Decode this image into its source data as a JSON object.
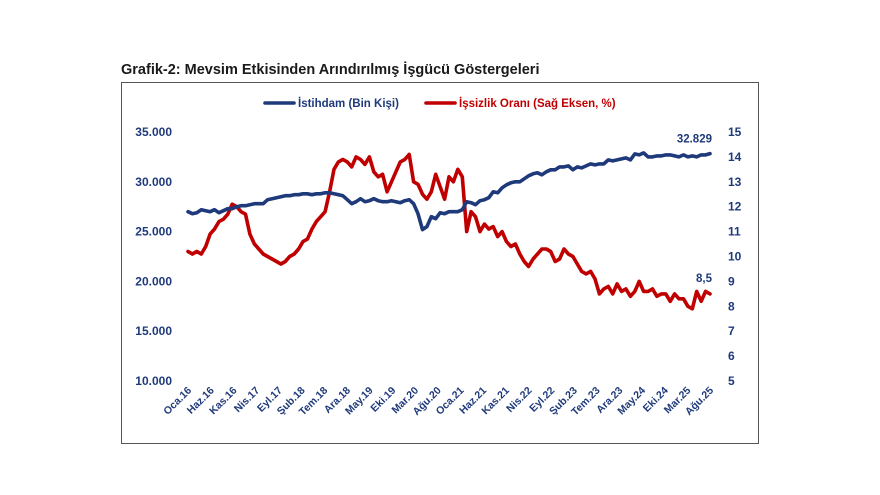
{
  "title": "Grafik-2: Mevsim Etkisinden Arındırılmış İşgücü Göstergeleri",
  "colors": {
    "employment": "#1f3a7a",
    "unemployment": "#c00000",
    "left_axis": "#1f3a7a",
    "right_axis": "#1f3a7a"
  },
  "chart_data": {
    "type": "line",
    "title": "Grafik-2: Mevsim Etkisinden Arındırılmış İşgücü Göstergeleri",
    "x_ticks": [
      "Oca.16",
      "Haz.16",
      "Kas.16",
      "Nis.17",
      "Eyl.17",
      "Şub.18",
      "Tem.18",
      "Ara.18",
      "May.19",
      "Eki.19",
      "Mar.20",
      "Ağu.20",
      "Oca.21",
      "Haz.21",
      "Kas.21",
      "Nis.22",
      "Eyl.22",
      "Şub.23",
      "Tem.23",
      "Ara.23",
      "May.24",
      "Eki.24",
      "Mar.25",
      "Ağu.25"
    ],
    "x_start": "Oca.16",
    "x_end": "Ağu.25",
    "y_left": {
      "ticks": [
        "10.000",
        "15.000",
        "20.000",
        "25.000",
        "30.000",
        "35.000"
      ],
      "ylim": [
        10000,
        35000
      ]
    },
    "y_right": {
      "ticks": [
        "5",
        "6",
        "7",
        "8",
        "9",
        "10",
        "11",
        "12",
        "13",
        "14",
        "15"
      ],
      "ylim": [
        5,
        15
      ]
    },
    "legend_position": "top",
    "series": [
      {
        "name": "İstihdam (Bin Kişi)",
        "axis": "left",
        "values": [
          27000,
          26800,
          26900,
          27200,
          27100,
          27000,
          27200,
          26900,
          27100,
          27300,
          27300,
          27500,
          27600,
          27600,
          27700,
          27800,
          27800,
          27800,
          28200,
          28300,
          28400,
          28500,
          28600,
          28600,
          28700,
          28700,
          28800,
          28800,
          28700,
          28800,
          28800,
          28900,
          28900,
          28800,
          28700,
          28600,
          28200,
          27800,
          28000,
          28300,
          28000,
          28100,
          28300,
          28100,
          28000,
          28000,
          28100,
          28000,
          27900,
          28100,
          28200,
          27800,
          26800,
          25200,
          25500,
          26500,
          26300,
          26900,
          26800,
          27000,
          27000,
          27000,
          27200,
          28000,
          27900,
          27700,
          28100,
          28200,
          28400,
          29000,
          28900,
          29400,
          29700,
          29900,
          30000,
          30000,
          30300,
          30600,
          30800,
          30900,
          30700,
          31000,
          31200,
          31200,
          31500,
          31500,
          31600,
          31200,
          31500,
          31400,
          31600,
          31800,
          31700,
          31800,
          31800,
          32200,
          32100,
          32200,
          32300,
          32400,
          32200,
          32800,
          32700,
          32900,
          32500,
          32500,
          32600,
          32600,
          32700,
          32700,
          32600,
          32500,
          32700,
          32500,
          32600,
          32500,
          32700,
          32700,
          32829
        ]
      },
      {
        "name": "İşsizlik Oranı (Sağ Eksen, %)",
        "axis": "right",
        "values": [
          10.2,
          10.1,
          10.2,
          10.1,
          10.4,
          10.9,
          11.1,
          11.4,
          11.5,
          11.7,
          12.1,
          12.0,
          11.8,
          11.7,
          10.9,
          10.5,
          10.3,
          10.1,
          10.0,
          9.9,
          9.8,
          9.7,
          9.8,
          10.0,
          10.1,
          10.3,
          10.6,
          10.7,
          11.1,
          11.4,
          11.6,
          11.8,
          12.6,
          13.5,
          13.8,
          13.9,
          13.8,
          13.6,
          14.0,
          13.9,
          13.7,
          14.0,
          13.4,
          13.2,
          13.3,
          12.6,
          13.0,
          13.4,
          13.8,
          13.9,
          14.1,
          13.0,
          12.9,
          12.5,
          12.3,
          12.6,
          13.3,
          12.8,
          12.3,
          13.2,
          13.0,
          13.5,
          13.2,
          11.0,
          11.8,
          11.6,
          11.0,
          11.3,
          11.1,
          11.2,
          10.8,
          11.0,
          10.6,
          10.4,
          10.5,
          10.1,
          9.8,
          9.6,
          9.9,
          10.1,
          10.3,
          10.3,
          10.2,
          9.8,
          9.9,
          10.3,
          10.1,
          10.0,
          9.7,
          9.4,
          9.3,
          9.4,
          9.1,
          8.5,
          8.7,
          8.8,
          8.5,
          8.9,
          8.6,
          8.7,
          8.4,
          8.6,
          9.0,
          8.6,
          8.6,
          8.7,
          8.4,
          8.5,
          8.5,
          8.2,
          8.5,
          8.3,
          8.3,
          8.0,
          7.9,
          8.6,
          8.2,
          8.6,
          8.5
        ]
      }
    ],
    "annotations": [
      {
        "series": "İstihdam (Bin Kişi)",
        "text": "32.829",
        "x": "Ağu.25"
      },
      {
        "series": "İşsizlik Oranı (Sağ Eksen, %)",
        "text": "8,5",
        "x": "Ağu.25"
      }
    ]
  }
}
